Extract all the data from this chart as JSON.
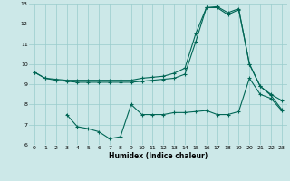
{
  "xlabel": "Humidex (Indice chaleur)",
  "xlim": [
    -0.5,
    23.5
  ],
  "ylim": [
    6,
    13
  ],
  "yticks": [
    6,
    7,
    8,
    9,
    10,
    11,
    12,
    13
  ],
  "xticks": [
    0,
    1,
    2,
    3,
    4,
    5,
    6,
    7,
    8,
    9,
    10,
    11,
    12,
    13,
    14,
    15,
    16,
    17,
    18,
    19,
    20,
    21,
    22,
    23
  ],
  "bg_color": "#cce8e8",
  "grid_color": "#99cccc",
  "line_color": "#006655",
  "line1_x": [
    0,
    1,
    2,
    3,
    4,
    5,
    6,
    7,
    8,
    9,
    10,
    11,
    12,
    13,
    14,
    15,
    16,
    17,
    18,
    19,
    20,
    21,
    22,
    23
  ],
  "line1_y": [
    9.6,
    9.3,
    9.25,
    9.2,
    9.2,
    9.2,
    9.2,
    9.2,
    9.2,
    9.2,
    9.3,
    9.35,
    9.4,
    9.55,
    9.8,
    11.5,
    12.8,
    12.85,
    12.55,
    12.75,
    10.0,
    8.9,
    8.5,
    8.2
  ],
  "line2_x": [
    0,
    1,
    2,
    3,
    4,
    5,
    6,
    7,
    8,
    9,
    10,
    11,
    12,
    13,
    14,
    15,
    16,
    17,
    18,
    19,
    20,
    21,
    22,
    23
  ],
  "line2_y": [
    9.6,
    9.3,
    9.2,
    9.15,
    9.1,
    9.1,
    9.1,
    9.1,
    9.1,
    9.1,
    9.15,
    9.2,
    9.25,
    9.3,
    9.5,
    11.1,
    12.8,
    12.8,
    12.45,
    12.7,
    10.0,
    8.9,
    8.45,
    7.75
  ],
  "line3_x": [
    3,
    4,
    5,
    6,
    7,
    8,
    9,
    10,
    11,
    12,
    13,
    14,
    15,
    16,
    17,
    18,
    19,
    20,
    21,
    22,
    23
  ],
  "line3_y": [
    7.5,
    6.9,
    6.8,
    6.65,
    6.3,
    6.4,
    8.0,
    7.5,
    7.5,
    7.5,
    7.6,
    7.6,
    7.65,
    7.7,
    7.5,
    7.5,
    7.65,
    9.3,
    8.5,
    8.3,
    7.7
  ]
}
